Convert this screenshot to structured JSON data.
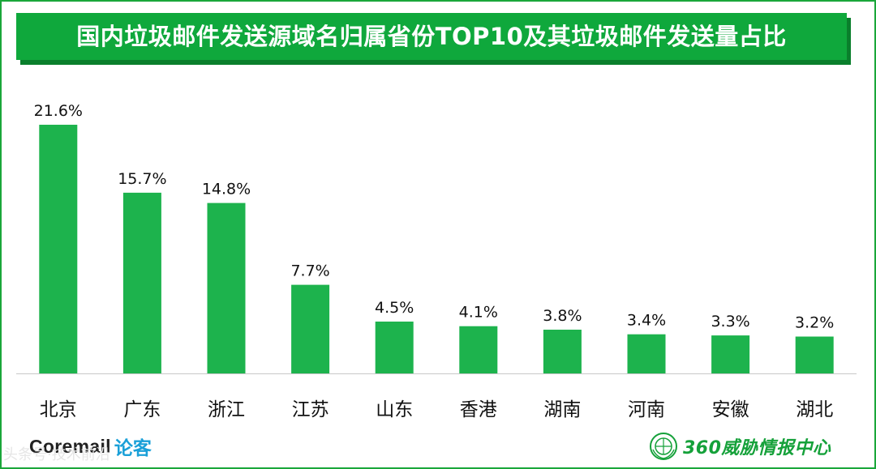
{
  "title": "国内垃圾邮件发送源域名归属省份TOP10及其垃圾邮件发送量占比",
  "chart_data": {
    "type": "bar",
    "title": "国内垃圾邮件发送源域名归属省份TOP10及其垃圾邮件发送量占比",
    "categories": [
      "北京",
      "广东",
      "浙江",
      "江苏",
      "山东",
      "香港",
      "湖南",
      "河南",
      "安徽",
      "湖北"
    ],
    "values": [
      21.6,
      15.7,
      14.8,
      7.7,
      4.5,
      4.1,
      3.8,
      3.4,
      3.3,
      3.2
    ],
    "value_labels": [
      "21.6%",
      "15.7%",
      "14.8%",
      "7.7%",
      "4.5%",
      "4.1%",
      "3.8%",
      "3.4%",
      "3.3%",
      "3.2%"
    ],
    "unit": "%",
    "ylim": [
      0,
      21.6
    ],
    "color": "#1db34d"
  },
  "footer": {
    "left_brand": "Coremail",
    "left_brand_cn": "论客",
    "right_brand": "360威胁情报中心",
    "watermark": "头条号·技术前沿"
  }
}
